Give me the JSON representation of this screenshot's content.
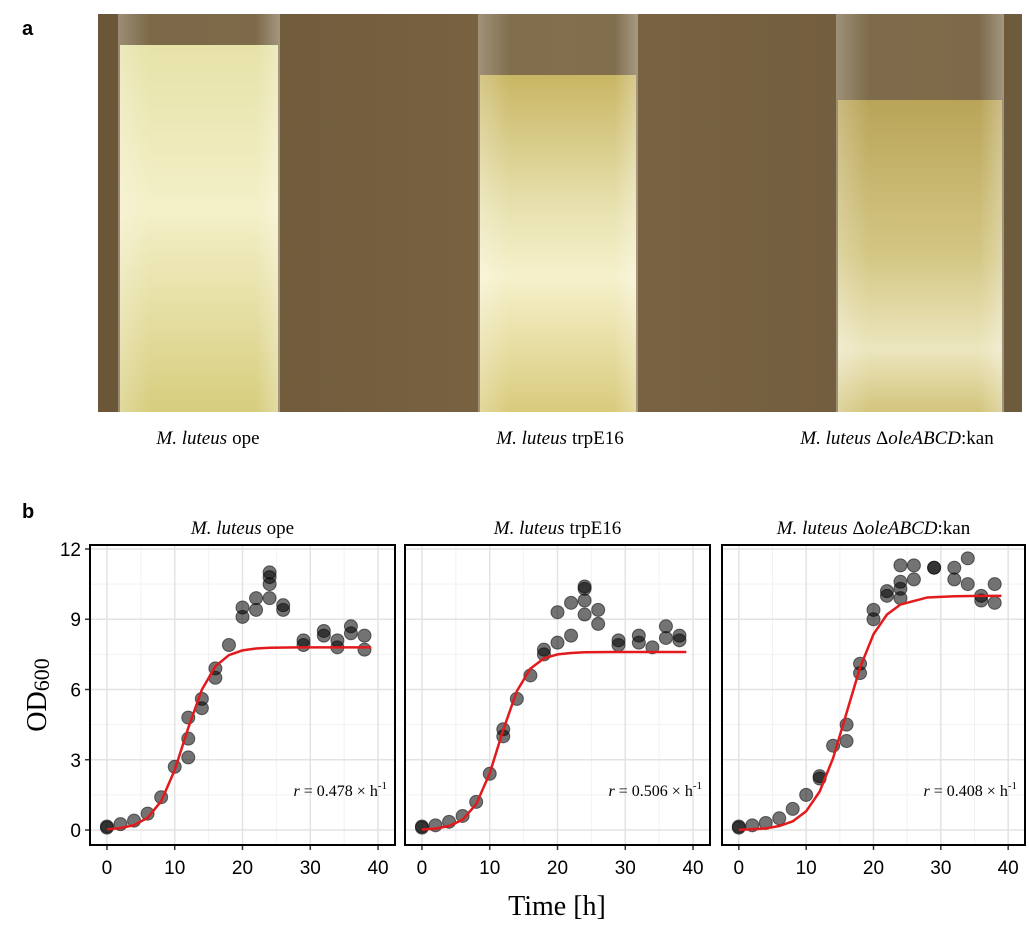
{
  "panel_labels": [
    "a",
    "b"
  ],
  "photo_captions": [
    [
      "M. luteus",
      "ope"
    ],
    [
      "M. luteus",
      "trpE16"
    ],
    [
      "M. luteus",
      "Δ",
      "oleABCD",
      ":kan"
    ]
  ],
  "y_label": {
    "text": "OD",
    "sub": "600"
  },
  "x_label": "Time [h]",
  "chart_data": [
    {
      "type": "scatter",
      "title": [
        "M. luteus",
        "ope"
      ],
      "annotation": {
        "symbol": "r",
        "text": "= 0.478 × h",
        "sup": "-1"
      },
      "xlim": [
        -2.5,
        42.5
      ],
      "ylim": [
        -0.64,
        12.17
      ],
      "xticks": [
        0,
        10,
        20,
        30,
        40
      ],
      "yticks": [
        0,
        3,
        6,
        9,
        12
      ],
      "ytick_labels": true,
      "grid": true,
      "series": [
        {
          "kind": "points",
          "color": "#000000",
          "x": [
            0,
            0,
            2,
            4,
            6,
            8,
            10,
            12,
            12,
            12,
            14,
            14,
            16,
            16,
            18,
            20,
            20,
            22,
            22,
            24,
            24,
            24,
            24,
            26,
            26,
            29,
            29,
            32,
            32,
            34,
            34,
            36,
            36,
            38,
            38
          ],
          "values": [
            0.1,
            0.15,
            0.25,
            0.4,
            0.7,
            1.4,
            2.7,
            4.8,
            3.9,
            3.1,
            5.6,
            5.2,
            6.9,
            6.5,
            7.9,
            9.5,
            9.1,
            9.9,
            9.4,
            11.0,
            10.8,
            10.5,
            9.9,
            9.6,
            9.4,
            8.1,
            7.9,
            8.5,
            8.3,
            8.1,
            7.8,
            8.7,
            8.4,
            8.3,
            7.7
          ]
        },
        {
          "kind": "fit",
          "color": "#e31a1c",
          "x": [
            0,
            2,
            4,
            6,
            8,
            10,
            12,
            14,
            16,
            18,
            20,
            22,
            24,
            28,
            32,
            36,
            39
          ],
          "values": [
            0.03,
            0.08,
            0.21,
            0.52,
            1.23,
            2.56,
            4.36,
            5.99,
            6.99,
            7.47,
            7.67,
            7.75,
            7.78,
            7.8,
            7.8,
            7.8,
            7.8
          ]
        }
      ]
    },
    {
      "type": "scatter",
      "title": [
        "M. luteus",
        "trpE16"
      ],
      "annotation": {
        "symbol": "r",
        "text": "= 0.506 × h",
        "sup": "-1"
      },
      "xlim": [
        -2.5,
        42.5
      ],
      "ylim": [
        -0.64,
        12.17
      ],
      "xticks": [
        0,
        10,
        20,
        30,
        40
      ],
      "yticks": [
        0,
        3,
        6,
        9,
        12
      ],
      "ytick_labels": false,
      "grid": true,
      "series": [
        {
          "kind": "points",
          "color": "#000000",
          "x": [
            0,
            0,
            2,
            4,
            6,
            8,
            10,
            12,
            12,
            14,
            16,
            18,
            18,
            20,
            20,
            22,
            22,
            24,
            24,
            24,
            24,
            26,
            26,
            29,
            29,
            32,
            32,
            34,
            36,
            36,
            38,
            38
          ],
          "values": [
            0.1,
            0.15,
            0.2,
            0.35,
            0.6,
            1.2,
            2.4,
            4.3,
            4.0,
            5.6,
            6.6,
            7.7,
            7.5,
            9.3,
            8.0,
            9.7,
            8.3,
            10.4,
            10.3,
            9.8,
            9.2,
            9.4,
            8.8,
            8.1,
            7.9,
            8.3,
            8.0,
            7.8,
            8.7,
            8.2,
            8.3,
            8.1
          ]
        },
        {
          "kind": "fit",
          "color": "#e31a1c",
          "x": [
            0,
            2,
            4,
            6,
            8,
            10,
            12,
            14,
            16,
            18,
            20,
            22,
            24,
            28,
            32,
            36,
            39
          ],
          "values": [
            0.02,
            0.06,
            0.17,
            0.44,
            1.1,
            2.42,
            4.28,
            5.93,
            6.89,
            7.33,
            7.5,
            7.56,
            7.59,
            7.6,
            7.6,
            7.6,
            7.6
          ]
        }
      ]
    },
    {
      "type": "scatter",
      "title": [
        "M. luteus",
        "Δ",
        "oleABCD",
        ":kan"
      ],
      "annotation": {
        "symbol": "r",
        "text": "= 0.408 × h",
        "sup": "-1"
      },
      "xlim": [
        -2.5,
        42.5
      ],
      "ylim": [
        -0.64,
        12.17
      ],
      "xticks": [
        0,
        10,
        20,
        30,
        40
      ],
      "yticks": [
        0,
        3,
        6,
        9,
        12
      ],
      "ytick_labels": false,
      "grid": true,
      "series": [
        {
          "kind": "points",
          "color": "#000000",
          "x": [
            0,
            0,
            2,
            4,
            6,
            8,
            10,
            12,
            12,
            14,
            16,
            16,
            18,
            18,
            20,
            20,
            22,
            22,
            24,
            24,
            24,
            24,
            26,
            26,
            29,
            29,
            32,
            32,
            34,
            34,
            36,
            36,
            38,
            38
          ],
          "values": [
            0.1,
            0.15,
            0.2,
            0.3,
            0.5,
            0.9,
            1.5,
            2.3,
            2.2,
            3.6,
            4.5,
            3.8,
            7.1,
            6.7,
            9.4,
            9.0,
            10.2,
            10.0,
            11.3,
            10.6,
            10.3,
            9.9,
            11.3,
            10.7,
            11.2,
            11.2,
            11.2,
            10.7,
            11.6,
            10.5,
            10.0,
            9.8,
            10.5,
            9.7
          ]
        },
        {
          "kind": "fit",
          "color": "#e31a1c",
          "x": [
            0,
            2,
            4,
            6,
            8,
            10,
            12,
            14,
            16,
            18,
            20,
            22,
            24,
            28,
            32,
            36,
            39
          ],
          "values": [
            0.01,
            0.03,
            0.07,
            0.17,
            0.37,
            0.8,
            1.64,
            3.07,
            5.0,
            6.93,
            8.36,
            9.2,
            9.63,
            9.93,
            9.98,
            10.0,
            10.0
          ]
        }
      ]
    }
  ]
}
